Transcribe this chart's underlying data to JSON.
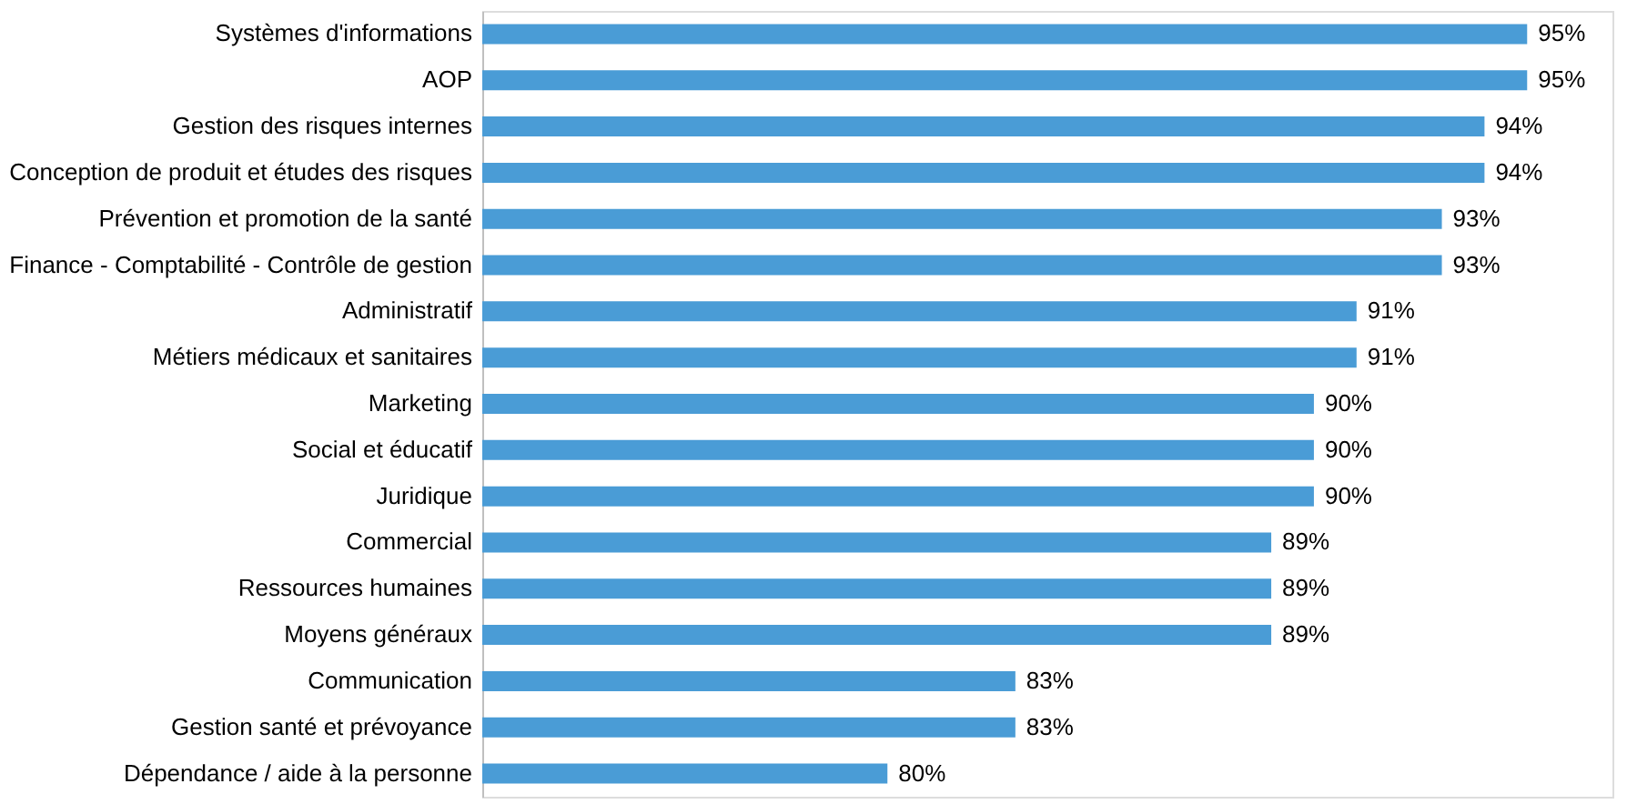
{
  "chart_data": {
    "type": "bar",
    "orientation": "horizontal",
    "categories": [
      "Systèmes d'informations",
      "AOP",
      "Gestion des risques internes",
      "Conception de produit et études des risques",
      "Prévention et promotion de la santé",
      "Finance - Comptabilité - Contrôle de gestion",
      "Administratif",
      "Métiers médicaux et sanitaires",
      "Marketing",
      "Social et éducatif",
      "Juridique",
      "Commercial",
      "Ressources humaines",
      "Moyens généraux",
      "Communication",
      "Gestion santé et prévoyance",
      "Dépendance / aide à la personne"
    ],
    "values": [
      95,
      95,
      94,
      94,
      93,
      93,
      91,
      91,
      90,
      90,
      90,
      89,
      89,
      89,
      83,
      83,
      80
    ],
    "value_labels": [
      "95%",
      "95%",
      "94%",
      "94%",
      "93%",
      "93%",
      "91%",
      "91%",
      "90%",
      "90%",
      "90%",
      "89%",
      "89%",
      "89%",
      "83%",
      "83%",
      "80%"
    ],
    "color": "#4a9cd6",
    "xlim": [
      70.5,
      97
    ]
  }
}
